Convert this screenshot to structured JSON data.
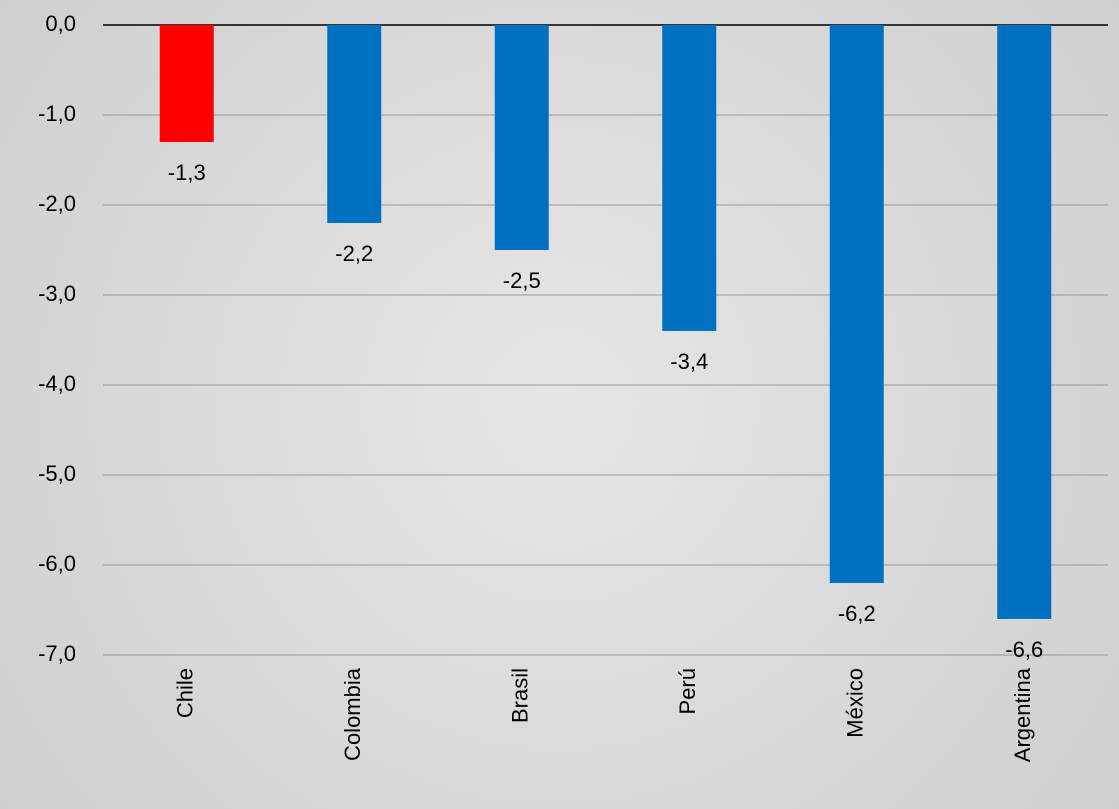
{
  "chart_data": {
    "type": "bar",
    "categories": [
      "Chile",
      "Colombia",
      "Brasil",
      "Perú",
      "México",
      "Argentina"
    ],
    "values": [
      -1.3,
      -2.2,
      -2.5,
      -3.4,
      -6.2,
      -6.6
    ],
    "value_labels": [
      "-1,3",
      "-2,2",
      "-2,5",
      "-3,4",
      "-6,2",
      "-6,6"
    ],
    "colors": [
      "#ff0000",
      "#0070c0",
      "#0070c0",
      "#0070c0",
      "#0070c0",
      "#0070c0"
    ],
    "ylim": [
      -7,
      0
    ],
    "yticks": [
      {
        "value": 0,
        "label": "0,0"
      },
      {
        "value": -1,
        "label": "-1,0"
      },
      {
        "value": -2,
        "label": "-2,0"
      },
      {
        "value": -3,
        "label": "-3,0"
      },
      {
        "value": -4,
        "label": "-4,0"
      },
      {
        "value": -5,
        "label": "-5,0"
      },
      {
        "value": -6,
        "label": "-6,0"
      },
      {
        "value": -7,
        "label": "-7,0"
      }
    ],
    "grid": true
  }
}
